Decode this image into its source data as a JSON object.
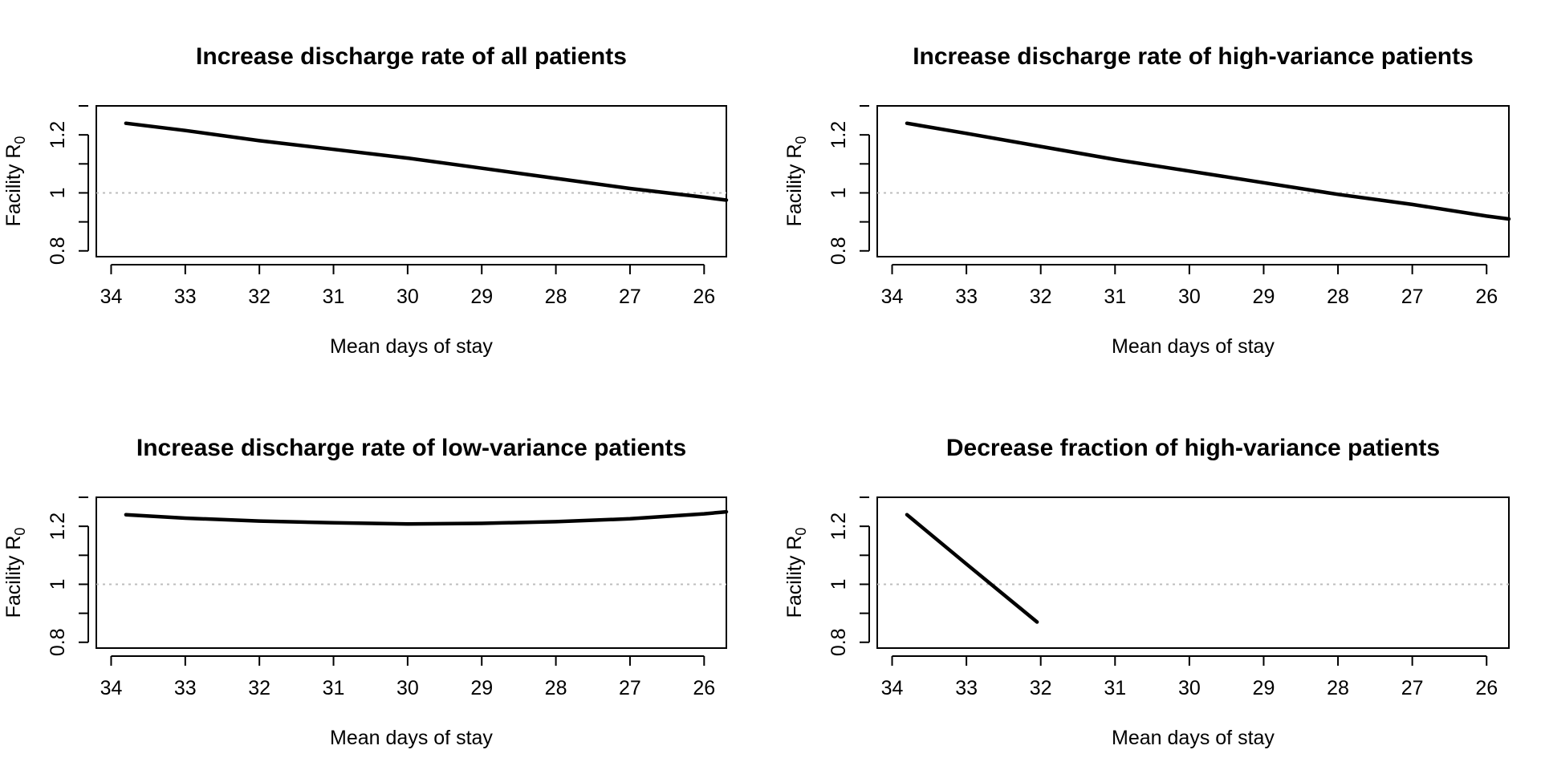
{
  "chart_data": [
    {
      "type": "line",
      "title": "Increase discharge rate of all patients",
      "xlabel": "Mean days of stay",
      "ylabel": "Facility R",
      "ylabel_subscript": "0",
      "xlim": [
        34.2,
        25.7
      ],
      "ylim": [
        0.78,
        1.3
      ],
      "x_reversed": true,
      "x_ticks": [
        34,
        33,
        32,
        31,
        30,
        29,
        28,
        27,
        26
      ],
      "y_ticks": [
        0.8,
        1,
        1.2
      ],
      "y_tick_labels": [
        "0.8",
        "1",
        "1.2"
      ],
      "reference_line": 1,
      "series": [
        {
          "x": [
            33.8,
            33,
            32,
            31,
            30,
            29,
            28,
            27,
            26,
            25.7
          ],
          "y": [
            1.24,
            1.215,
            1.18,
            1.15,
            1.12,
            1.085,
            1.05,
            1.015,
            0.985,
            0.975
          ]
        }
      ]
    },
    {
      "type": "line",
      "title": "Increase discharge rate of high-variance patients",
      "xlabel": "Mean days of stay",
      "ylabel": "Facility R",
      "ylabel_subscript": "0",
      "xlim": [
        34.2,
        25.7
      ],
      "ylim": [
        0.78,
        1.3
      ],
      "x_reversed": true,
      "x_ticks": [
        34,
        33,
        32,
        31,
        30,
        29,
        28,
        27,
        26
      ],
      "y_ticks": [
        0.8,
        1,
        1.2
      ],
      "y_tick_labels": [
        "0.8",
        "1",
        "1.2"
      ],
      "reference_line": 1,
      "series": [
        {
          "x": [
            33.8,
            33,
            32,
            31,
            30,
            29,
            28,
            27,
            26,
            25.7
          ],
          "y": [
            1.24,
            1.205,
            1.16,
            1.115,
            1.075,
            1.035,
            0.995,
            0.96,
            0.92,
            0.91
          ]
        }
      ]
    },
    {
      "type": "line",
      "title": "Increase discharge rate of low-variance patients",
      "xlabel": "Mean days of stay",
      "ylabel": "Facility R",
      "ylabel_subscript": "0",
      "xlim": [
        34.2,
        25.7
      ],
      "ylim": [
        0.78,
        1.3
      ],
      "x_reversed": true,
      "x_ticks": [
        34,
        33,
        32,
        31,
        30,
        29,
        28,
        27,
        26
      ],
      "y_ticks": [
        0.8,
        1,
        1.2
      ],
      "y_tick_labels": [
        "0.8",
        "1",
        "1.2"
      ],
      "reference_line": 1,
      "series": [
        {
          "x": [
            33.8,
            33,
            32,
            31,
            30,
            29,
            28,
            27,
            26,
            25.7
          ],
          "y": [
            1.24,
            1.228,
            1.218,
            1.212,
            1.208,
            1.21,
            1.216,
            1.226,
            1.243,
            1.25
          ]
        }
      ]
    },
    {
      "type": "line",
      "title": "Decrease fraction of high-variance patients",
      "xlabel": "Mean days of stay",
      "ylabel": "Facility R",
      "ylabel_subscript": "0",
      "xlim": [
        34.2,
        25.7
      ],
      "ylim": [
        0.78,
        1.3
      ],
      "x_reversed": true,
      "x_ticks": [
        34,
        33,
        32,
        31,
        30,
        29,
        28,
        27,
        26
      ],
      "y_ticks": [
        0.8,
        1,
        1.2
      ],
      "y_tick_labels": [
        "0.8",
        "1",
        "1.2"
      ],
      "reference_line": 1,
      "series": [
        {
          "x": [
            33.8,
            33,
            32.05
          ],
          "y": [
            1.24,
            1.07,
            0.87
          ]
        }
      ]
    }
  ]
}
